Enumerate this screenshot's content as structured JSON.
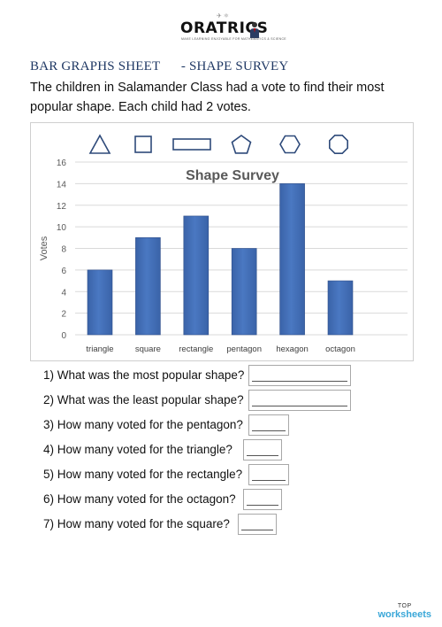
{
  "logo": {
    "text": "ORATRICS",
    "tagline": "MAKE LEARNING ENJOYABLE FOR MATHEMATICS & SCIENCE"
  },
  "worksheet": {
    "title": "BAR GRAPHS SHEET      - SHAPE SURVEY",
    "intro": "The children in Salamander Class had a vote to find their most popular shape. Each child had 2 votes."
  },
  "chart_data": {
    "type": "bar",
    "title": "Shape Survey",
    "xlabel": "",
    "ylabel": "Votes",
    "categories": [
      "triangle",
      "square",
      "rectangle",
      "pentagon",
      "hexagon",
      "octagon"
    ],
    "values": [
      6,
      9,
      11,
      8,
      14,
      5
    ],
    "ylim": [
      0,
      16
    ],
    "yticks": [
      0,
      2,
      4,
      6,
      8,
      10,
      12,
      14,
      16
    ],
    "grid": true,
    "bar_color": "#4a78c2",
    "shape_icons": [
      "triangle-icon",
      "square-icon",
      "rectangle-icon",
      "pentagon-icon",
      "hexagon-icon",
      "octagon-icon"
    ]
  },
  "questions": [
    {
      "text": "1) What was the most popular shape?"
    },
    {
      "text": "2) What was the least popular shape?"
    },
    {
      "text": "3) How many voted for the pentagon?"
    },
    {
      "text": "4) How many voted for the triangle?"
    },
    {
      "text": "5) How many voted for the rectangle?"
    },
    {
      "text": "6) How many voted for the octagon?"
    },
    {
      "text": "7) How many voted for the square?"
    }
  ],
  "footer": {
    "top": "TOP",
    "brand": "worksheets"
  }
}
